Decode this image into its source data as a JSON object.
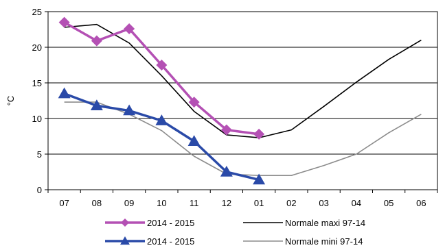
{
  "chart_data": {
    "type": "line",
    "title": "",
    "xlabel": "",
    "ylabel": "°C",
    "categories": [
      "07",
      "08",
      "09",
      "10",
      "11",
      "12",
      "01",
      "02",
      "03",
      "04",
      "05",
      "06"
    ],
    "ylim": [
      0,
      25
    ],
    "yticks": [
      0,
      5,
      10,
      15,
      20,
      25
    ],
    "grid": true,
    "legend_position": "bottom",
    "series": [
      {
        "name": "2014 - 2015",
        "color": "#b450b4",
        "marker": "diamond",
        "values": [
          23.5,
          20.9,
          22.6,
          17.5,
          12.3,
          8.4,
          7.8,
          null,
          null,
          null,
          null,
          null
        ]
      },
      {
        "name": "2014 - 2015",
        "color": "#2a4aa8",
        "marker": "triangle",
        "values": [
          13.5,
          11.8,
          11.1,
          9.7,
          6.8,
          2.5,
          1.4,
          null,
          null,
          null,
          null,
          null
        ]
      },
      {
        "name": "Normale maxi 97-14",
        "color": "#000000",
        "marker": "none",
        "values": [
          22.8,
          23.2,
          20.6,
          16.0,
          11.0,
          7.7,
          7.3,
          8.4,
          11.7,
          15.1,
          18.3,
          21.0
        ]
      },
      {
        "name": "Normale mini 97-14",
        "color": "#8c8c8c",
        "marker": "none",
        "values": [
          12.3,
          12.3,
          10.6,
          8.3,
          4.7,
          2.2,
          2.0,
          2.0,
          3.4,
          5.0,
          8.0,
          10.6
        ]
      }
    ]
  }
}
